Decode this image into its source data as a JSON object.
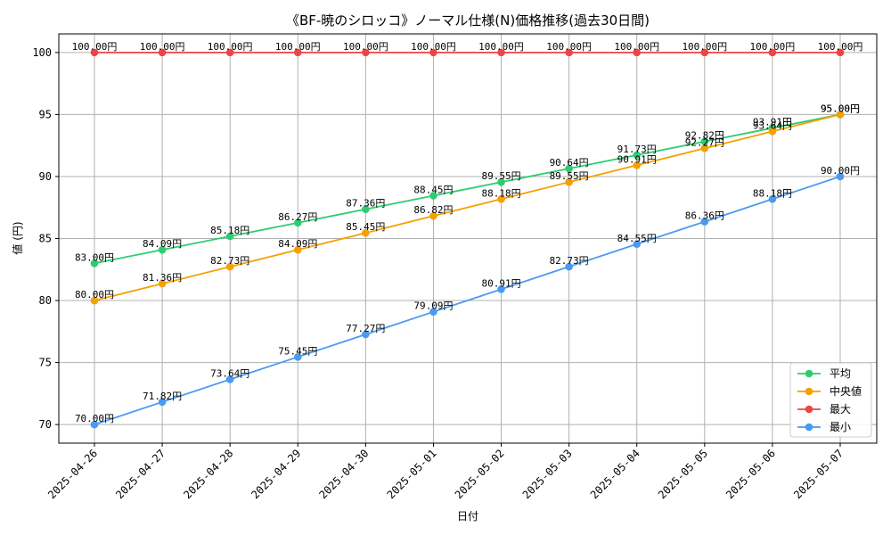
{
  "chart_data": {
    "type": "line",
    "title": "《BF-暁のシロッコ》ノーマル仕様(N)価格推移(過去30日間)",
    "xlabel": "日付",
    "ylabel": "値 (円)",
    "ylim": [
      68.5,
      101.5
    ],
    "yticks": [
      70,
      75,
      80,
      85,
      90,
      95,
      100
    ],
    "grid": true,
    "legend_position": "bottom-right",
    "label_suffix": "円",
    "x": [
      "2025-04-26",
      "2025-04-27",
      "2025-04-28",
      "2025-04-29",
      "2025-04-30",
      "2025-05-01",
      "2025-05-02",
      "2025-05-03",
      "2025-05-04",
      "2025-05-05",
      "2025-05-06",
      "2025-05-07"
    ],
    "series": [
      {
        "name": "平均",
        "color": "#2ecc71",
        "values": [
          83.0,
          84.09,
          85.18,
          86.27,
          87.36,
          88.45,
          89.55,
          90.64,
          91.73,
          92.82,
          93.91,
          95.0
        ]
      },
      {
        "name": "中央値",
        "color": "#f5a000",
        "values": [
          80.0,
          81.36,
          82.73,
          84.09,
          85.45,
          86.82,
          88.18,
          89.55,
          90.91,
          92.27,
          93.64,
          95.0
        ]
      },
      {
        "name": "最大",
        "color": "#ef4444",
        "values": [
          100.0,
          100.0,
          100.0,
          100.0,
          100.0,
          100.0,
          100.0,
          100.0,
          100.0,
          100.0,
          100.0,
          100.0
        ]
      },
      {
        "name": "最小",
        "color": "#4a9af0",
        "values": [
          70.0,
          71.82,
          73.64,
          75.45,
          77.27,
          79.09,
          80.91,
          82.73,
          84.55,
          86.36,
          88.18,
          90.0
        ]
      }
    ]
  }
}
